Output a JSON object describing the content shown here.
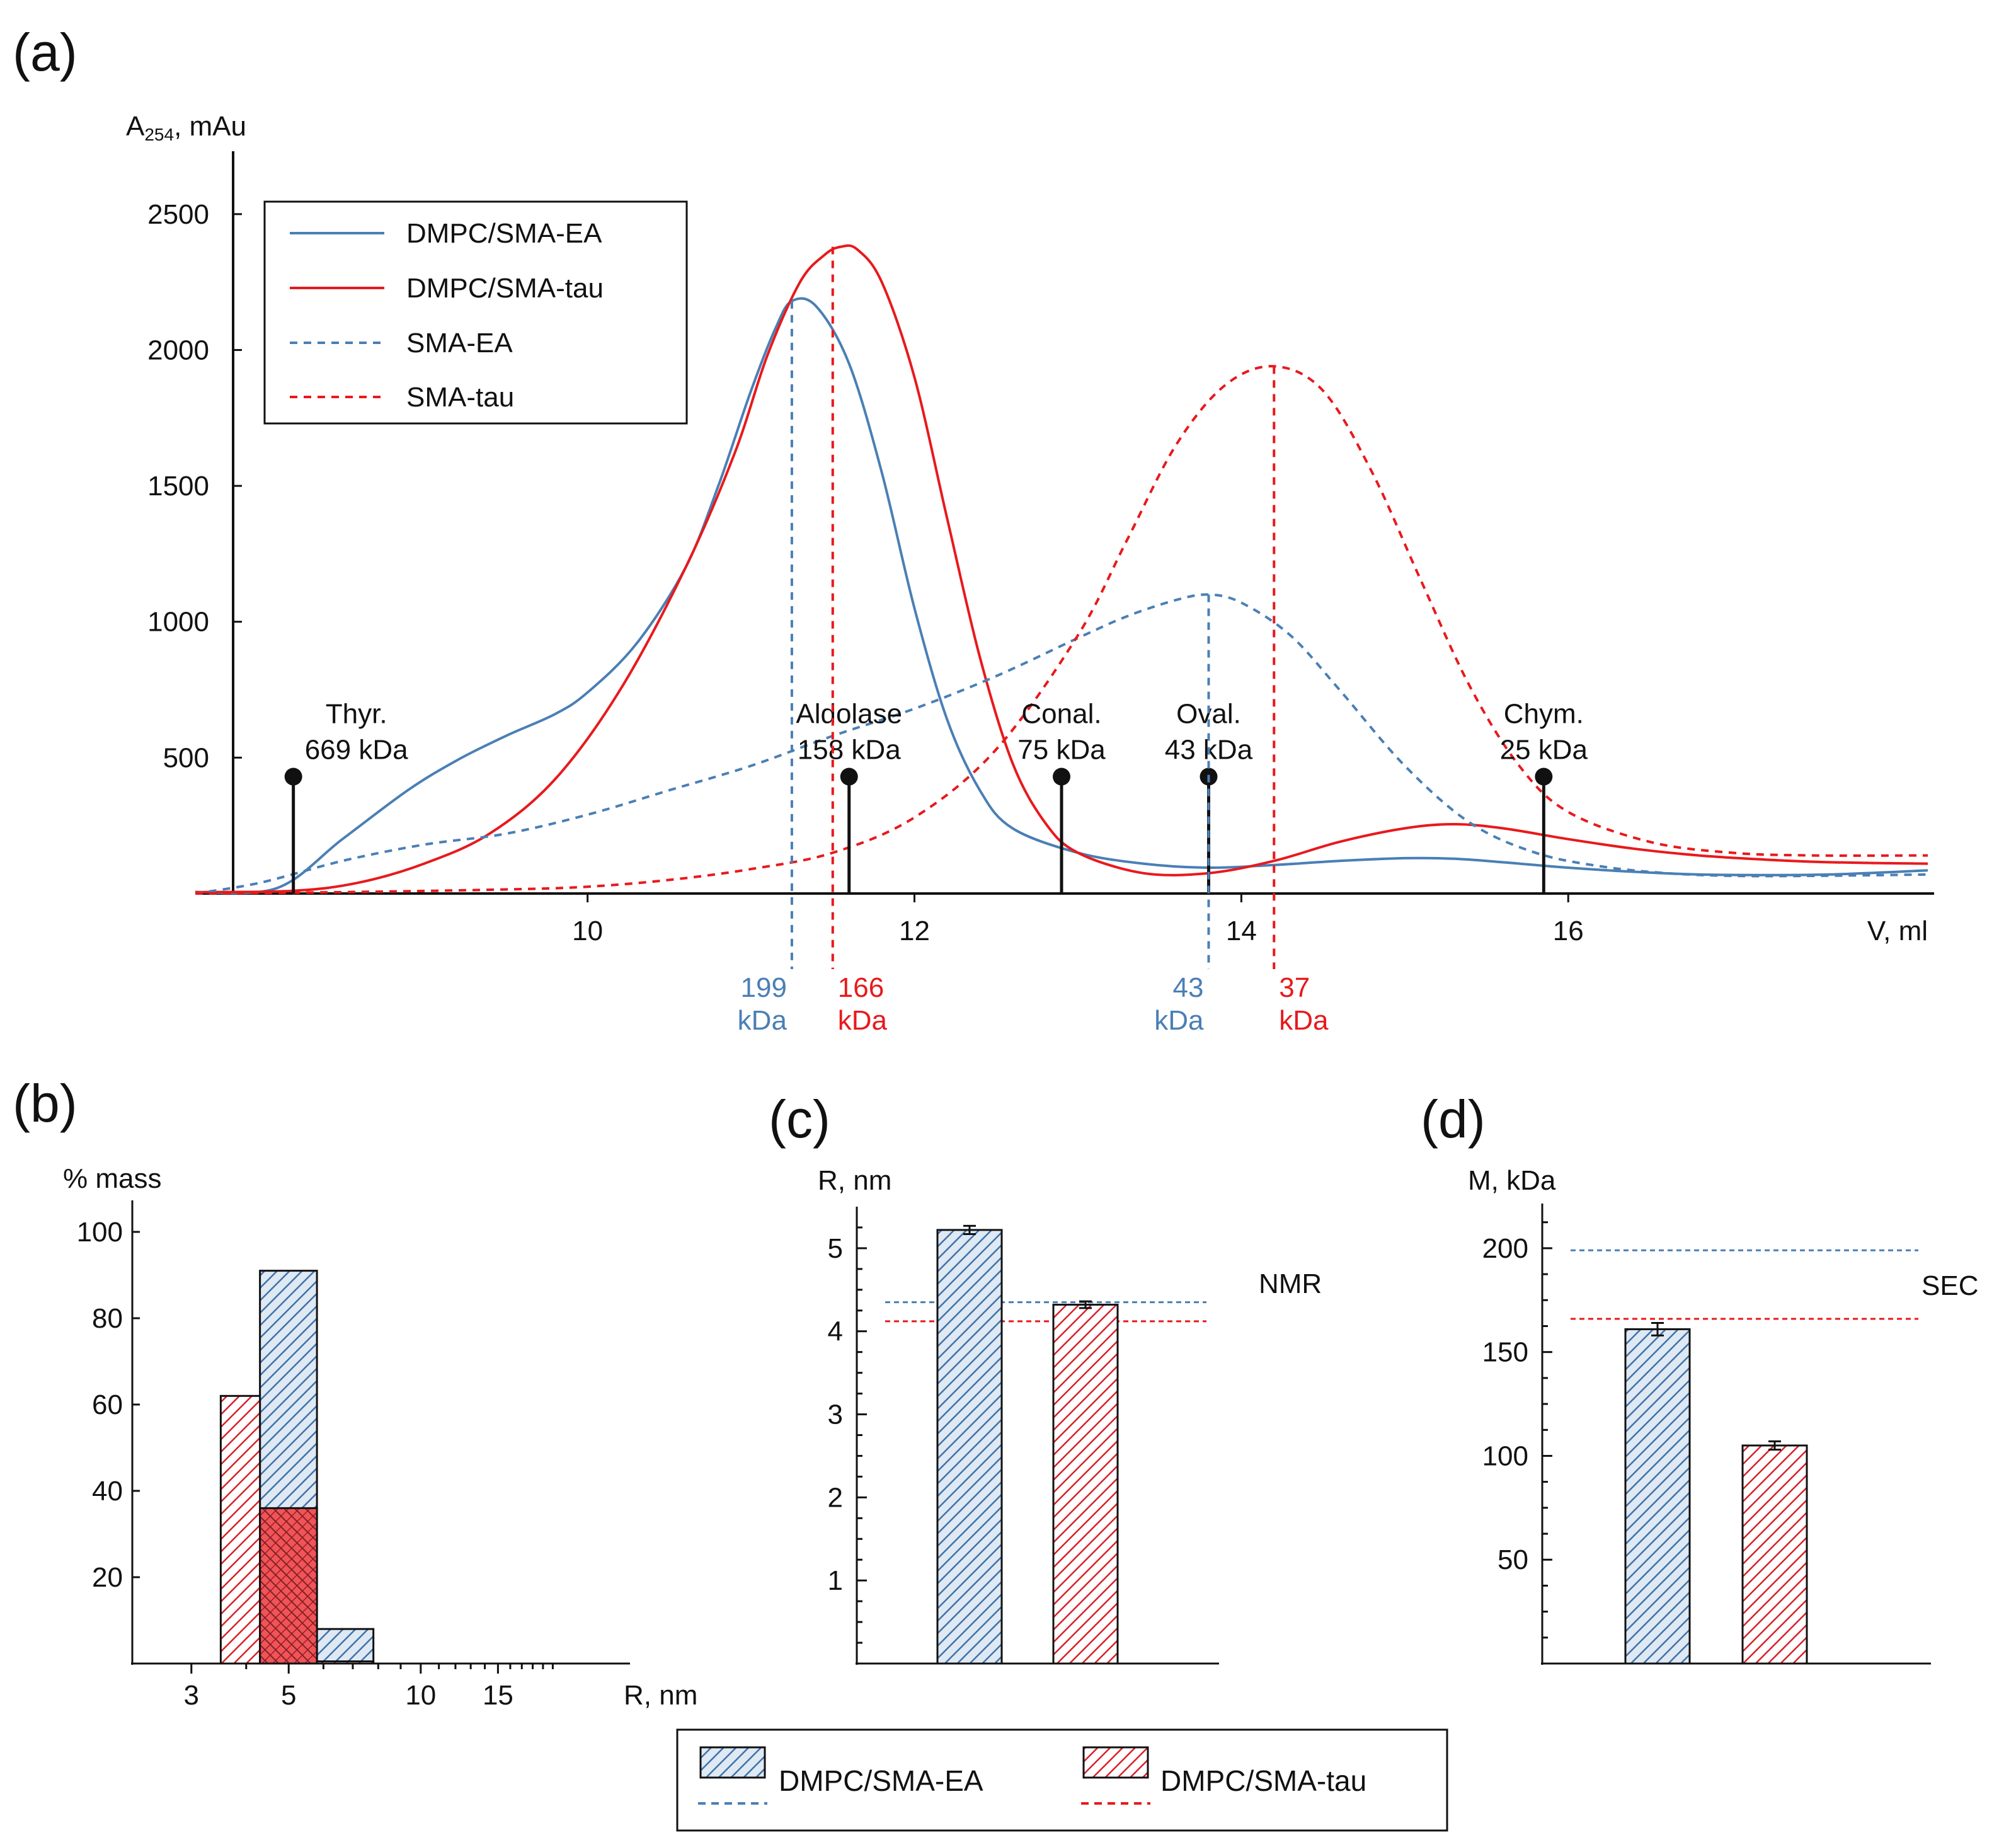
{
  "colors": {
    "blue": "#4a7fb5",
    "red": "#e8191c",
    "axis": "#111111"
  },
  "chart_data": [
    {
      "panel": "(a)",
      "type": "line",
      "ylabel_main": "A",
      "ylabel_sub": "254",
      "ylabel_unit": ",  mAu",
      "xlabel": "V, ml",
      "xlim": [
        7.6,
        18.2
      ],
      "ylim": [
        0,
        2750
      ],
      "xticks": [
        10,
        12,
        14,
        16
      ],
      "yticks": [
        500,
        1000,
        1500,
        2000,
        2500
      ],
      "series": [
        {
          "name": "DMPC/SMA-EA",
          "style": "solid",
          "color": "blue",
          "x": [
            7.6,
            8.1,
            8.5,
            8.9,
            9.2,
            9.5,
            9.8,
            10.0,
            10.3,
            10.6,
            10.8,
            11.0,
            11.15,
            11.25,
            11.4,
            11.6,
            11.8,
            12.0,
            12.2,
            12.4,
            12.6,
            13.0,
            13.4,
            13.8,
            14.2,
            14.6,
            15.0,
            15.3,
            15.6,
            16.0,
            16.4,
            16.8,
            17.2,
            17.6,
            18.2
          ],
          "y": [
            5,
            20,
            200,
            380,
            490,
            580,
            660,
            740,
            920,
            1200,
            1500,
            1850,
            2080,
            2180,
            2160,
            1950,
            1550,
            1050,
            640,
            380,
            240,
            150,
            110,
            95,
            105,
            120,
            130,
            128,
            115,
            95,
            80,
            70,
            68,
            70,
            85
          ]
        },
        {
          "name": "DMPC/SMA-tau",
          "style": "solid",
          "color": "red",
          "x": [
            7.6,
            8.2,
            8.6,
            9.0,
            9.4,
            9.8,
            10.2,
            10.6,
            10.9,
            11.1,
            11.3,
            11.45,
            11.55,
            11.65,
            11.8,
            12.0,
            12.2,
            12.4,
            12.6,
            12.8,
            13.0,
            13.4,
            13.8,
            14.2,
            14.6,
            15.0,
            15.3,
            15.6,
            16.0,
            16.4,
            16.8,
            17.2,
            17.6,
            18.2
          ],
          "y": [
            5,
            10,
            40,
            110,
            220,
            420,
            750,
            1200,
            1620,
            1980,
            2250,
            2350,
            2380,
            2370,
            2250,
            1900,
            1380,
            870,
            480,
            260,
            150,
            75,
            75,
            120,
            190,
            240,
            255,
            240,
            200,
            165,
            140,
            125,
            115,
            110
          ]
        },
        {
          "name": "SMA-EA",
          "style": "dashed",
          "color": "blue",
          "x": [
            7.6,
            8.0,
            8.5,
            9.0,
            9.5,
            10.0,
            10.5,
            11.0,
            11.5,
            12.0,
            12.5,
            13.0,
            13.3,
            13.6,
            13.8,
            14.0,
            14.3,
            14.6,
            15.0,
            15.4,
            15.8,
            16.2,
            16.6,
            17.0,
            17.5,
            18.2
          ],
          "y": [
            0,
            40,
            120,
            180,
            220,
            290,
            380,
            470,
            580,
            680,
            800,
            940,
            1020,
            1080,
            1100,
            1070,
            950,
            750,
            470,
            260,
            150,
            100,
            75,
            65,
            65,
            70
          ]
        },
        {
          "name": "SMA-tau",
          "style": "dashed",
          "color": "red",
          "x": [
            7.6,
            8.5,
            9.5,
            10.0,
            10.5,
            11.0,
            11.5,
            12.0,
            12.5,
            13.0,
            13.3,
            13.6,
            13.9,
            14.2,
            14.5,
            14.8,
            15.1,
            15.4,
            15.7,
            16.0,
            16.5,
            17.0,
            17.5,
            18.2
          ],
          "y": [
            0,
            5,
            15,
            25,
            50,
            90,
            150,
            280,
            530,
            950,
            1300,
            1650,
            1870,
            1940,
            1850,
            1550,
            1150,
            760,
            470,
            300,
            190,
            150,
            140,
            140
          ]
        }
      ],
      "peaks": [
        {
          "x": 11.25,
          "y": 2180,
          "color": "blue",
          "mw": "199",
          "unit": "kDa"
        },
        {
          "x": 11.5,
          "y": 2380,
          "color": "red",
          "mw": "166",
          "unit": "kDa"
        },
        {
          "x": 13.8,
          "y": 1100,
          "color": "blue",
          "mw": "43",
          "unit": "kDa"
        },
        {
          "x": 14.2,
          "y": 1940,
          "color": "red",
          "mw": "37",
          "unit": "kDa"
        }
      ],
      "markers": [
        {
          "x": 8.2,
          "y": 430,
          "name": "Thyr.",
          "mw": "669 kDa"
        },
        {
          "x": 11.6,
          "y": 430,
          "name": "Aldolase",
          "mw": "158 kDa"
        },
        {
          "x": 12.9,
          "y": 430,
          "name": "Conal.",
          "mw": "75 kDa"
        },
        {
          "x": 13.8,
          "y": 430,
          "name": "Oval.",
          "mw": "43 kDa"
        },
        {
          "x": 15.85,
          "y": 430,
          "name": "Chym.",
          "mw": "25 kDa"
        }
      ],
      "legend": [
        "DMPC/SMA-EA",
        "DMPC/SMA-tau",
        "SMA-EA",
        "SMA-tau"
      ]
    },
    {
      "panel": "(b)",
      "type": "bar",
      "ylabel": "% mass",
      "xlabel": "R, nm",
      "xscale": "log",
      "xlim": [
        2.2,
        30
      ],
      "ylim": [
        0,
        105
      ],
      "xticks": [
        3,
        5,
        10,
        15
      ],
      "yticks": [
        20,
        40,
        60,
        80,
        100
      ],
      "bins": [
        {
          "from": 3.5,
          "to": 4.3,
          "ea": 0,
          "tau": 62
        },
        {
          "from": 4.3,
          "to": 5.8,
          "ea": 91,
          "tau": 36
        },
        {
          "from": 5.8,
          "to": 7.8,
          "ea": 8,
          "tau": 0.5
        }
      ]
    },
    {
      "panel": "(c)",
      "type": "bar",
      "ylabel": "R, nm",
      "ylim": [
        0,
        5.5
      ],
      "yticks": [
        1,
        2,
        3,
        4,
        5
      ],
      "values": [
        {
          "name": "DMPC/SMA-EA",
          "value": 5.22,
          "err": 0.05
        },
        {
          "name": "DMPC/SMA-tau",
          "value": 4.32,
          "err": 0.04
        }
      ],
      "reference": {
        "label": "NMR",
        "ea": 4.35,
        "tau": 4.12
      }
    },
    {
      "panel": "(d)",
      "type": "bar",
      "ylabel": "M, kDa",
      "ylim": [
        0,
        220
      ],
      "yticks": [
        50,
        100,
        150,
        200
      ],
      "values": [
        {
          "name": "DMPC/SMA-EA",
          "value": 161,
          "err": 3
        },
        {
          "name": "DMPC/SMA-tau",
          "value": 105,
          "err": 2
        }
      ],
      "reference": {
        "label": "SEC",
        "ea": 199,
        "tau": 166
      }
    }
  ],
  "bottom_legend": [
    "DMPC/SMA-EA",
    "DMPC/SMA-tau"
  ]
}
